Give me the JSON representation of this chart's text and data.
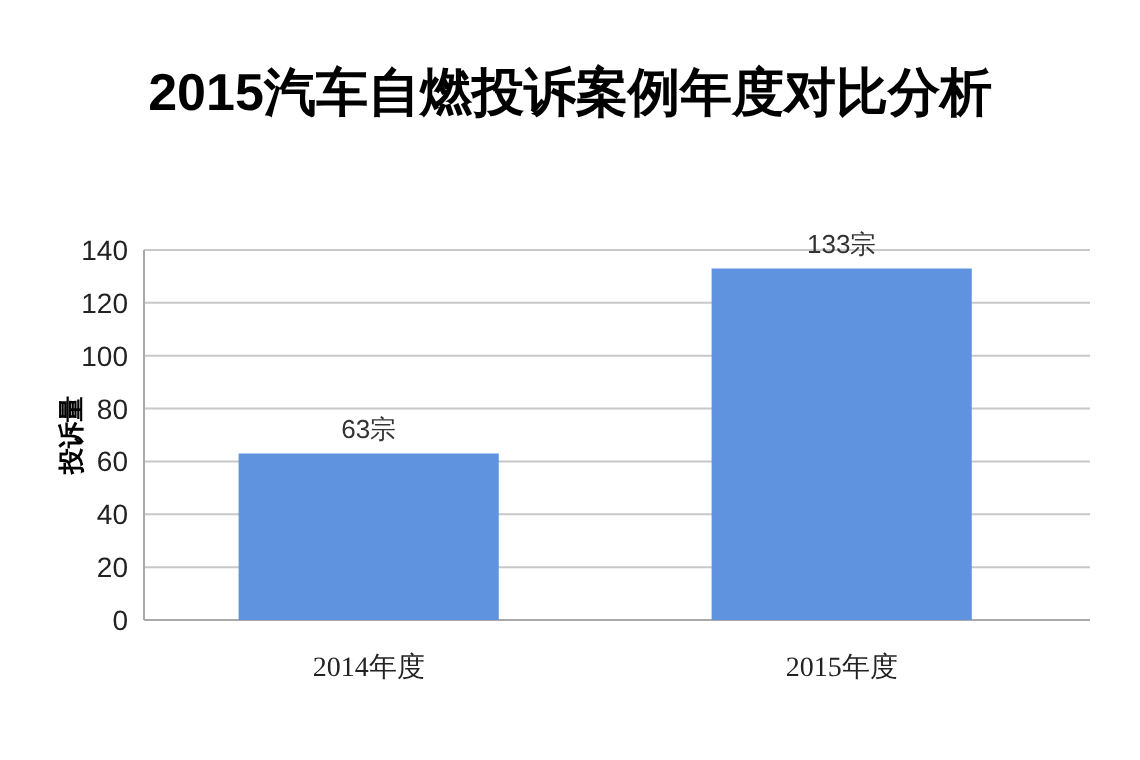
{
  "chart_data": {
    "type": "bar",
    "title": "2015汽车自燃投诉案例年度对比分析",
    "ylabel": "投诉量",
    "categories": [
      "2014年度",
      "2015年度"
    ],
    "series": [
      {
        "color": "#5f93e0",
        "values": [
          63,
          133
        ],
        "value_labels": [
          "63宗",
          "133宗"
        ]
      }
    ],
    "ylim": [
      0,
      140
    ],
    "yticks": [
      0,
      20,
      40,
      60,
      80,
      100,
      120,
      140
    ],
    "grid": "y"
  }
}
